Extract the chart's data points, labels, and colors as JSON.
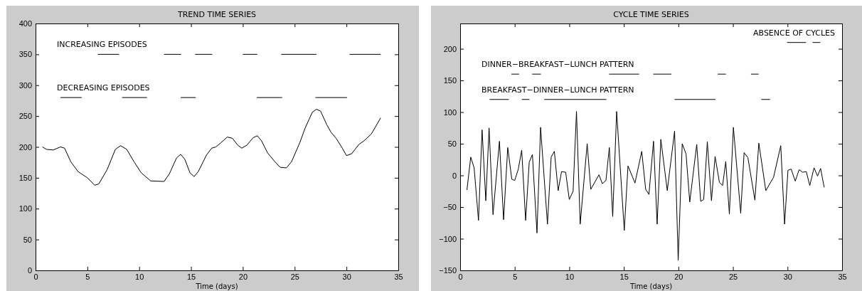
{
  "chart_data": [
    {
      "type": "line",
      "title": "TREND TIME SERIES",
      "xlabel": "Time (days)",
      "xlim": [
        0,
        35
      ],
      "xticks": [
        0,
        5,
        10,
        15,
        20,
        25,
        30,
        35
      ],
      "ylim": [
        0,
        400
      ],
      "yticks": [
        0,
        50,
        100,
        150,
        200,
        250,
        300,
        350,
        400
      ],
      "series": [
        {
          "color": "#000000",
          "x": [
            0.66,
            1.06,
            1.7,
            2.4,
            2.8,
            3.4,
            4.1,
            5.0,
            5.7,
            6.1,
            6.9,
            7.7,
            8.2,
            8.8,
            9.5,
            10.2,
            11.1,
            12.4,
            12.9,
            13.6,
            14.0,
            14.4,
            14.9,
            15.3,
            15.7,
            16.5,
            17.0,
            17.4,
            17.9,
            18.5,
            19.0,
            19.5,
            19.9,
            20.4,
            21.0,
            21.4,
            21.8,
            22.4,
            23.1,
            23.6,
            24.2,
            24.7,
            25.5,
            26.0,
            26.7,
            27.1,
            27.5,
            28.1,
            28.5,
            29.0,
            29.6,
            30.0,
            30.5,
            31.2,
            31.7,
            32.4,
            33.3
          ],
          "values": [
            200,
            196,
            195,
            200,
            198,
            176,
            160,
            150,
            138,
            140,
            163,
            196,
            202,
            196,
            176,
            158,
            145,
            144,
            156,
            182,
            188,
            180,
            158,
            152,
            160,
            187,
            198,
            200,
            207,
            216,
            214,
            203,
            198,
            203,
            215,
            218,
            210,
            190,
            176,
            167,
            166,
            176,
            207,
            230,
            256,
            261,
            258,
            236,
            224,
            214,
            198,
            186,
            189,
            204,
            210,
            221,
            247
          ]
        },
        {
          "name": "INCREASING EPISODES",
          "type": "line",
          "color": "#000000",
          "x": [
            6.0,
            8.05,
            10.2,
            12.4,
            14.05,
            14.7,
            15.4,
            17.05,
            18.5,
            20.0,
            21.4,
            22.5,
            23.7,
            27.1,
            28.7,
            30.3,
            33.3
          ],
          "values": [
            350,
            350,
            null,
            350,
            350,
            null,
            350,
            350,
            null,
            350,
            350,
            null,
            350,
            350,
            null,
            350,
            350
          ]
        },
        {
          "name": "DECREASING EPISODES",
          "type": "line",
          "color": "#000000",
          "x": [
            2.4,
            4.45,
            6.4,
            8.35,
            10.75,
            12.4,
            14.0,
            15.45,
            18.4,
            21.35,
            23.8,
            25.4,
            27.0,
            30.05
          ],
          "values": [
            280,
            280,
            null,
            280,
            280,
            null,
            280,
            280,
            null,
            280,
            280,
            null,
            280,
            280
          ]
        }
      ]
    },
    {
      "type": "line",
      "title": "CYCLE TIME SERIES",
      "xlabel": "Time (days)",
      "xlim": [
        0,
        35
      ],
      "xticks": [
        0,
        5,
        10,
        15,
        20,
        25,
        30,
        35
      ],
      "ylim": [
        -150,
        240
      ],
      "yticks": [
        -150,
        -100,
        -50,
        0,
        50,
        100,
        150,
        200
      ],
      "series": [
        {
          "color": "#000000",
          "x": [
            0.62,
            0.97,
            1.28,
            1.68,
            2.01,
            2.35,
            2.65,
            3.01,
            3.6,
            3.98,
            4.36,
            4.73,
            5.0,
            5.33,
            5.64,
            6.0,
            6.33,
            6.62,
            7.04,
            7.37,
            8.0,
            8.34,
            8.63,
            8.98,
            9.29,
            9.67,
            10.0,
            10.35,
            10.66,
            11.0,
            11.64,
            11.97,
            12.72,
            13.03,
            13.36,
            13.67,
            13.98,
            14.34,
            15.04,
            15.38,
            16.02,
            16.64,
            17.0,
            17.3,
            17.72,
            18.05,
            18.39,
            18.98,
            19.65,
            19.98,
            20.35,
            20.7,
            21.04,
            21.68,
            22.04,
            22.32,
            22.65,
            23.03,
            23.36,
            23.76,
            24.05,
            24.34,
            24.67,
            25.04,
            25.71,
            26.02,
            26.37,
            27.01,
            27.37,
            28.01,
            28.72,
            29.38,
            29.73,
            30.04,
            30.33,
            30.71,
            31.06,
            31.39,
            31.72,
            32.04,
            32.43,
            32.75,
            33.03,
            33.36
          ],
          "values": [
            -23,
            29,
            12,
            -71,
            72,
            -40,
            75,
            -62,
            54,
            -70,
            44,
            -6,
            -8,
            10,
            40,
            -71,
            21,
            33,
            -91,
            76,
            -77,
            29,
            38,
            -24,
            6,
            5,
            -38,
            -25,
            101,
            -77,
            50,
            -22,
            1,
            -13,
            -8,
            44,
            -65,
            101,
            -87,
            15,
            -12,
            38,
            -22,
            -30,
            54,
            -77,
            57,
            -24,
            70,
            -134,
            50,
            34,
            -42,
            49,
            -41,
            -38,
            53,
            -40,
            30,
            -11,
            -16,
            22,
            -61,
            76,
            -60,
            36,
            28,
            -39,
            51,
            -24,
            -3,
            47,
            -77,
            8,
            10,
            -9,
            9,
            5,
            6,
            -16,
            12,
            -1,
            11,
            -19
          ]
        },
        {
          "name": "ABSENCE OF CYCLES",
          "type": "line",
          "color": "#000000",
          "x": [
            29.95,
            31.7,
            32.0,
            32.3,
            33.0
          ],
          "values": [
            210,
            210,
            null,
            210,
            210
          ]
        },
        {
          "name": "DINNER−BREAKFAST−LUNCH PATTERN",
          "type": "line",
          "color": "#000000",
          "x": [
            4.7,
            5.4,
            6.0,
            6.6,
            7.4,
            10.5,
            13.65,
            16.4,
            17.0,
            17.7,
            19.35,
            21.5,
            23.6,
            24.35,
            25.5,
            26.65,
            27.35
          ],
          "values": [
            160,
            160,
            null,
            160,
            160,
            null,
            160,
            160,
            null,
            160,
            160,
            null,
            160,
            160,
            null,
            160,
            160
          ]
        },
        {
          "name": "BREAKFAST−DINNER−LUNCH PATTERN",
          "type": "line",
          "color": "#000000",
          "x": [
            2.7,
            4.45,
            5.0,
            5.65,
            6.35,
            7.0,
            7.7,
            13.4,
            16.5,
            19.65,
            23.4,
            25.5,
            27.6,
            28.4
          ],
          "values": [
            120,
            120,
            null,
            120,
            120,
            null,
            120,
            120,
            null,
            120,
            120,
            null,
            120,
            120
          ]
        }
      ]
    }
  ]
}
